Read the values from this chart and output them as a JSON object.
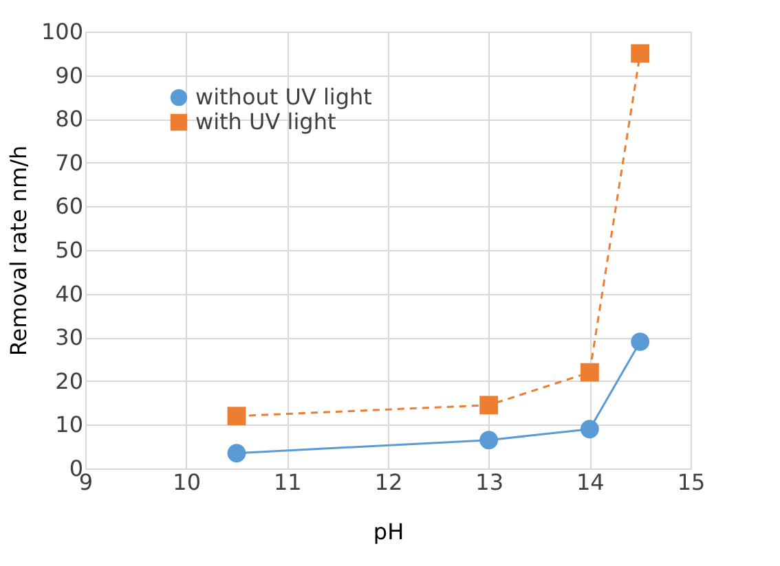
{
  "chart_data": {
    "type": "line",
    "xlabel": "pH",
    "ylabel": "Removal rate    nm/h",
    "x": [
      10.5,
      13,
      14,
      14.5
    ],
    "series": [
      {
        "name": "without UV light",
        "color": "#5b9bd5",
        "values": [
          3.5,
          6.5,
          9,
          29
        ],
        "marker": "circle",
        "line_style": "solid"
      },
      {
        "name": "with UV light",
        "color": "#ed7d31",
        "values": [
          12,
          14.5,
          22,
          95
        ],
        "marker": "square",
        "line_style": "dashed"
      }
    ],
    "xlim": [
      9,
      15
    ],
    "xticks": [
      9,
      10,
      11,
      12,
      13,
      14,
      15
    ],
    "ylim": [
      0,
      100
    ],
    "yticks": [
      0,
      10,
      20,
      30,
      40,
      50,
      60,
      70,
      80,
      90,
      100
    ],
    "grid": true,
    "legend": "top left"
  }
}
